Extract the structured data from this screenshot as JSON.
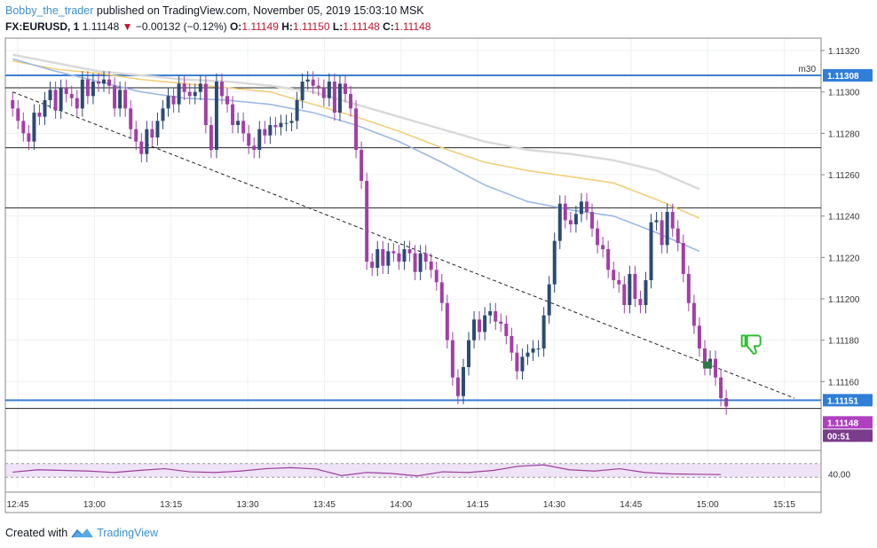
{
  "header": {
    "author": "Bobby_the_trader",
    "published_text": "published on TradingView.com, November 05, 2019 15:03:10 MSK",
    "symbol": "FX:EURUSD, 1",
    "last": "1.11148",
    "change": "−0.00132 (−0.12%)",
    "o_label": "O:",
    "o_value": "1.11149",
    "h_label": "H:",
    "h_value": "1.11150",
    "l_label": "L:",
    "l_value": "1.11148",
    "c_label": "C:",
    "c_value": "1.11148"
  },
  "footer": {
    "created_with": "Created with",
    "brand": "TradingView"
  },
  "colors": {
    "bull": "#2c4b73",
    "bear": "#a23fa6",
    "level_blue": "#3c7fd0",
    "ma_blue": "#9db9e6",
    "ma_orange": "#f0cf7a",
    "ma_gray": "#d9d9d9",
    "rsi": "#9b3d9e",
    "rsi_band": "#efe3f7",
    "badge_blue": "#2f7fd6",
    "badge_purple": "#b040c0",
    "badge_dark": "#7a3c8c",
    "thumb": "#2fbf2f"
  },
  "chart_data": {
    "type": "candlestick",
    "symbol": "FX:EURUSD",
    "timeframe": "1",
    "xlabels": [
      "12:45",
      "13:00",
      "13:15",
      "13:30",
      "13:45",
      "14:00",
      "14:15",
      "14:30",
      "14:45",
      "15:00",
      "15:15"
    ],
    "xlim": [
      "12:45",
      "15:17"
    ],
    "ylim": [
      1.11128,
      1.11326
    ],
    "yticks": [
      "1.11160",
      "1.11180",
      "1.11200",
      "1.11220",
      "1.11240",
      "1.11260",
      "1.11280",
      "1.11300",
      "1.11320"
    ],
    "price_badges": {
      "upper_level": "1.11308",
      "lower_level": "1.11151",
      "last": "1.11148",
      "countdown": "00:51"
    },
    "interval_label": "m30",
    "horizontal_levels": [
      1.11308,
      1.11302,
      1.11273,
      1.11244,
      1.11151,
      1.11147
    ],
    "trendline": {
      "from": [
        "12:44",
        1.113
      ],
      "to": [
        "15:17",
        1.11152
      ]
    },
    "rsi": {
      "ytick": "40.00",
      "guides": [
        70,
        30
      ]
    }
  },
  "chart_series": {
    "candles_key": "minute bars 12:44-15:04, values in price units",
    "closes": [
      1.11292,
      1.11286,
      1.1128,
      1.11276,
      1.1129,
      1.11288,
      1.11296,
      1.11301,
      1.11291,
      1.11302,
      1.11299,
      1.11297,
      1.11292,
      1.11306,
      1.11298,
      1.11305,
      1.11304,
      1.11306,
      1.11303,
      1.11292,
      1.11301,
      1.11292,
      1.11282,
      1.11276,
      1.1127,
      1.11282,
      1.11278,
      1.11286,
      1.11292,
      1.11298,
      1.11294,
      1.11304,
      1.113,
      1.11298,
      1.113,
      1.11304,
      1.11284,
      1.11272,
      1.11305,
      1.11298,
      1.11294,
      1.11284,
      1.11286,
      1.1128,
      1.11274,
      1.11272,
      1.11282,
      1.11279,
      1.11284,
      1.11283,
      1.11285,
      1.11285,
      1.11286,
      1.11296,
      1.11305,
      1.11306,
      1.11303,
      1.11302,
      1.11297,
      1.11305,
      1.1129,
      1.11304,
      1.11299,
      1.11292,
      1.11272,
      1.11257,
      1.11218,
      1.11215,
      1.11224,
      1.11216,
      1.11223,
      1.11222,
      1.11218,
      1.11224,
      1.11222,
      1.11213,
      1.11222,
      1.11218,
      1.11214,
      1.11208,
      1.11198,
      1.1118,
      1.11162,
      1.11153,
      1.11167,
      1.1118,
      1.1119,
      1.11184,
      1.11192,
      1.11194,
      1.11189,
      1.11188,
      1.11182,
      1.11174,
      1.11165,
      1.11172,
      1.11174,
      1.11176,
      1.11176,
      1.11192,
      1.11207,
      1.11228,
      1.11246,
      1.11238,
      1.11236,
      1.11241,
      1.11247,
      1.11242,
      1.11234,
      1.11226,
      1.11224,
      1.11214,
      1.11209,
      1.11207,
      1.11197,
      1.11212,
      1.112,
      1.11197,
      1.11209,
      1.11237,
      1.11238,
      1.11226,
      1.11242,
      1.11234,
      1.11227,
      1.11212,
      1.11198,
      1.11187,
      1.11176,
      1.11167,
      1.11171,
      1.11162,
      1.11152,
      1.11148
    ],
    "opens": [
      1.11296,
      1.11292,
      1.11286,
      1.1128,
      1.11276,
      1.1129,
      1.11288,
      1.11296,
      1.11301,
      1.11291,
      1.11302,
      1.11299,
      1.11297,
      1.11292,
      1.11306,
      1.11298,
      1.11305,
      1.11304,
      1.11306,
      1.11303,
      1.11292,
      1.11301,
      1.11292,
      1.11282,
      1.11276,
      1.1127,
      1.11282,
      1.11278,
      1.11286,
      1.11292,
      1.11298,
      1.11294,
      1.11304,
      1.113,
      1.11298,
      1.113,
      1.11304,
      1.11284,
      1.11272,
      1.11305,
      1.11298,
      1.11294,
      1.11284,
      1.11286,
      1.1128,
      1.11274,
      1.11272,
      1.11282,
      1.11279,
      1.11284,
      1.11283,
      1.11285,
      1.11285,
      1.11286,
      1.11296,
      1.11305,
      1.11306,
      1.11303,
      1.11302,
      1.11297,
      1.11305,
      1.1129,
      1.11304,
      1.11299,
      1.11292,
      1.11272,
      1.11257,
      1.11218,
      1.11215,
      1.11224,
      1.11216,
      1.11223,
      1.11222,
      1.11218,
      1.11224,
      1.11222,
      1.11213,
      1.11222,
      1.11218,
      1.11214,
      1.11208,
      1.11198,
      1.1118,
      1.11162,
      1.11153,
      1.11167,
      1.1118,
      1.1119,
      1.11184,
      1.11192,
      1.11194,
      1.11189,
      1.11188,
      1.11182,
      1.11174,
      1.11165,
      1.11172,
      1.11174,
      1.11176,
      1.11176,
      1.11192,
      1.11207,
      1.11228,
      1.11246,
      1.11238,
      1.11236,
      1.11241,
      1.11247,
      1.11242,
      1.11234,
      1.11226,
      1.11224,
      1.11214,
      1.11209,
      1.11207,
      1.11197,
      1.11212,
      1.112,
      1.11197,
      1.11209,
      1.11237,
      1.11238,
      1.11226,
      1.11242,
      1.11234,
      1.11227,
      1.11212,
      1.11198,
      1.11187,
      1.11176,
      1.11167,
      1.11171,
      1.11162,
      1.11152
    ],
    "ma_blue": {
      "x_start": "12:44",
      "values_every_10min": [
        1.11316,
        1.1131,
        1.11305,
        1.113,
        1.11297,
        1.11296,
        1.11294,
        1.1129,
        1.11284,
        1.11276,
        1.11266,
        1.11255,
        1.11247,
        1.11243,
        1.1124,
        1.11232,
        1.11223
      ]
    },
    "ma_orange": {
      "x_start": "12:44",
      "values_every_10min": [
        1.11315,
        1.11311,
        1.11309,
        1.11306,
        1.11304,
        1.11302,
        1.113,
        1.11294,
        1.11288,
        1.11281,
        1.11273,
        1.11266,
        1.11262,
        1.11259,
        1.11256,
        1.11248,
        1.11239
      ]
    },
    "ma_gray": {
      "x_start": "12:44",
      "values_every_10min": [
        1.11318,
        1.11314,
        1.1131,
        1.11308,
        1.11306,
        1.11305,
        1.11303,
        1.113,
        1.11294,
        1.11288,
        1.11282,
        1.11276,
        1.11272,
        1.1127,
        1.11267,
        1.11262,
        1.11253
      ]
    },
    "rsi_values_every_5min": [
      45,
      52,
      50,
      48,
      44,
      50,
      55,
      46,
      44,
      48,
      55,
      58,
      54,
      35,
      44,
      41,
      34,
      46,
      44,
      50,
      62,
      66,
      52,
      48,
      55,
      44,
      40,
      39,
      38
    ]
  }
}
